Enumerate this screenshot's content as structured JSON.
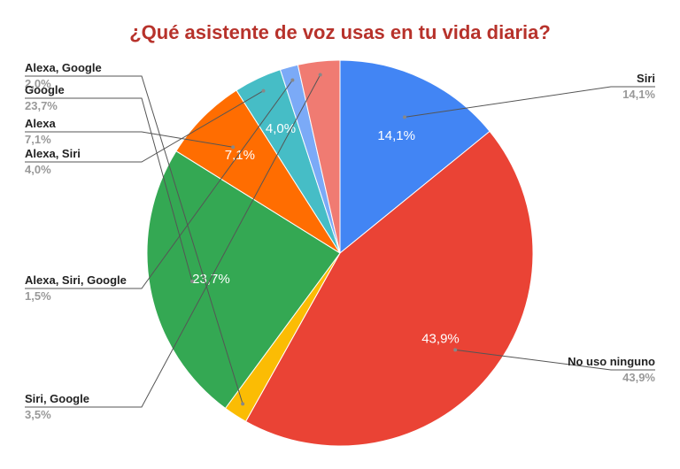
{
  "chart_data": {
    "type": "pie",
    "title": "¿Qué asistente de voz usas en tu vida diaria?",
    "start_angle_deg": 0,
    "direction": "clockwise",
    "slices": [
      {
        "label": "Siri",
        "value": 14.1,
        "display": "14,1%",
        "color": "#4285f4",
        "legend_side": "right",
        "show_inner_label": true
      },
      {
        "label": "No uso ninguno",
        "value": 43.9,
        "display": "43,9%",
        "color": "#ea4335",
        "legend_side": "right",
        "show_inner_label": true
      },
      {
        "label": "Alexa, Google",
        "value": 2.0,
        "display": "2,0%",
        "color": "#fbbc04",
        "legend_side": "left",
        "show_inner_label": false
      },
      {
        "label": "Google",
        "value": 23.7,
        "display": "23,7%",
        "color": "#34a853",
        "legend_side": "left",
        "show_inner_label": true
      },
      {
        "label": "Alexa",
        "value": 7.1,
        "display": "7,1%",
        "color": "#ff6d01",
        "legend_side": "left",
        "show_inner_label": true
      },
      {
        "label": "Alexa, Siri",
        "value": 4.0,
        "display": "4,0%",
        "color": "#46bdc6",
        "legend_side": "left",
        "show_inner_label": true
      },
      {
        "label": "Alexa, Siri, Google",
        "value": 1.5,
        "display": "1,5%",
        "color": "#7baaf7",
        "legend_side": "left",
        "show_inner_label": false
      },
      {
        "label": "Siri, Google",
        "value": 3.5,
        "display": "3,5%",
        "color": "#f07b72",
        "legend_side": "left",
        "show_inner_label": false
      }
    ]
  }
}
